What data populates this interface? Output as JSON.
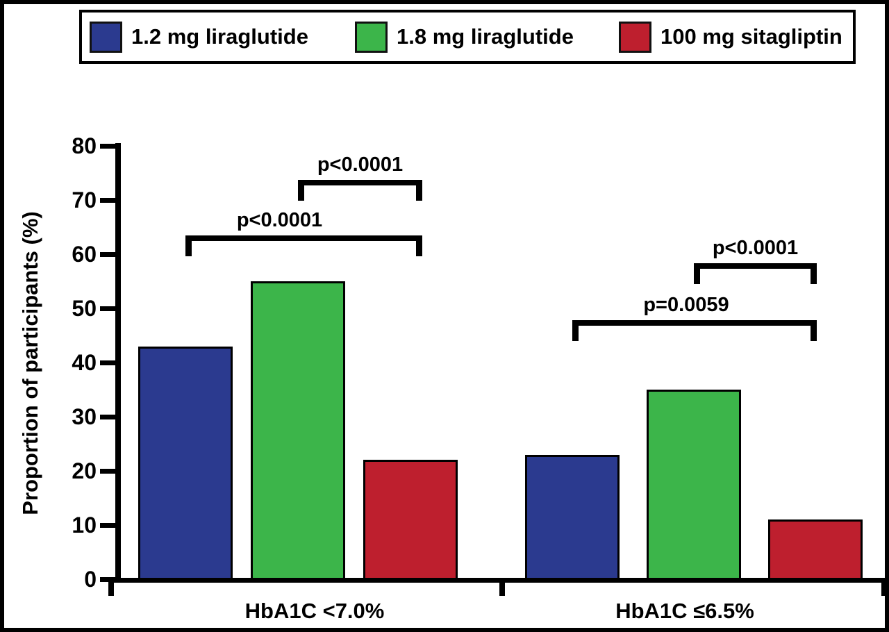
{
  "legend": {
    "items": [
      {
        "label": "1.2 mg liraglutide",
        "color": "#2b3a8f"
      },
      {
        "label": "1.8 mg liraglutide",
        "color": "#3cb54a"
      },
      {
        "label": "100 mg sitagliptin",
        "color": "#be1f2e"
      }
    ]
  },
  "chart_data": {
    "type": "bar",
    "title": "",
    "xlabel": "",
    "ylabel": "Proportion of participants (%)",
    "ylim": [
      0,
      80
    ],
    "yticks": [
      0,
      10,
      20,
      30,
      40,
      50,
      60,
      70,
      80
    ],
    "grid": false,
    "legend_position": "top",
    "categories": [
      "HbA1C <7.0%",
      "HbA1C ≤6.5%"
    ],
    "series": [
      {
        "name": "1.2 mg liraglutide",
        "color": "#2b3a8f",
        "values": [
          43,
          23
        ]
      },
      {
        "name": "1.8 mg liraglutide",
        "color": "#3cb54a",
        "values": [
          55,
          35
        ]
      },
      {
        "name": "100 mg sitagliptin",
        "color": "#be1f2e",
        "values": [
          22,
          11
        ]
      }
    ],
    "annotations": [
      {
        "group": 0,
        "from": "1.2 mg liraglutide",
        "to": "100 mg sitagliptin",
        "label": "p<0.0001"
      },
      {
        "group": 0,
        "from": "1.8 mg liraglutide",
        "to": "100 mg sitagliptin",
        "label": "p<0.0001"
      },
      {
        "group": 1,
        "from": "1.2 mg liraglutide",
        "to": "100 mg sitagliptin",
        "label": "p=0.0059"
      },
      {
        "group": 1,
        "from": "1.8 mg liraglutide",
        "to": "100 mg sitagliptin",
        "label": "p<0.0001"
      }
    ]
  }
}
